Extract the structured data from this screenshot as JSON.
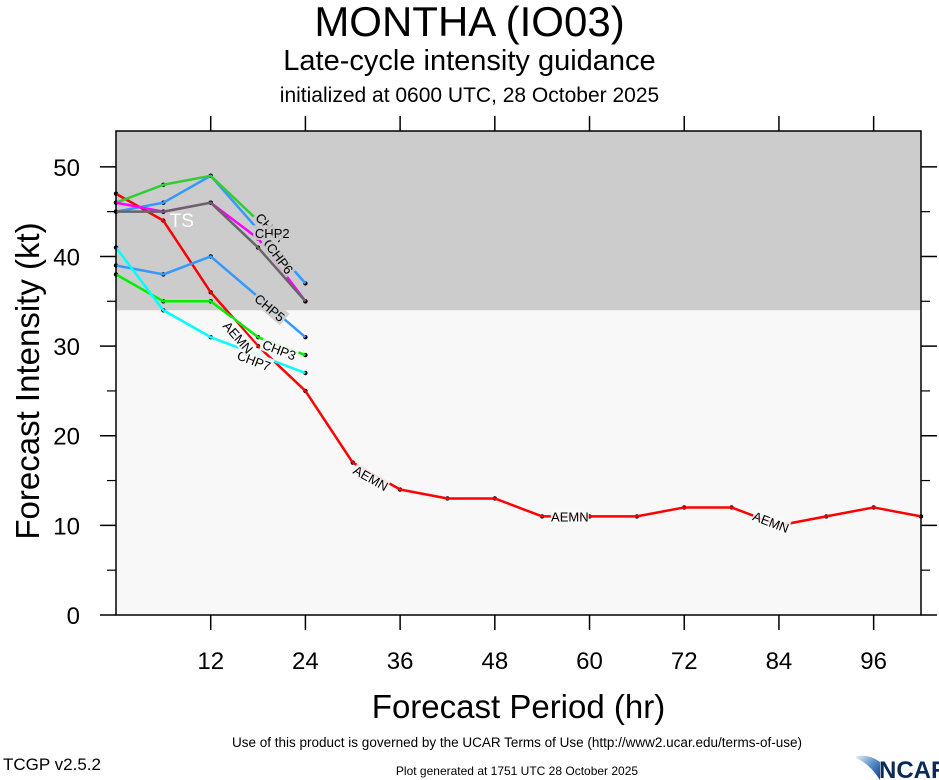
{
  "header": {
    "title": "MONTHA (IO03)",
    "subtitle": "Late-cycle intensity guidance",
    "init_line": "initialized at 0600 UTC, 28 October 2025"
  },
  "footer": {
    "terms": "Use of this product is governed by the UCAR Terms of Use (http://www2.ucar.edu/terms-of-use)",
    "version": "TCGP v2.5.2",
    "generated": "Plot generated at 1751 UTC   28 October 2025",
    "logo_text": "NCAR"
  },
  "chart_data": {
    "type": "line",
    "title": "MONTHA (IO03)",
    "xlabel": "Forecast Period (hr)",
    "ylabel": "Forecast Intensity (kt)",
    "xlim": [
      0,
      102
    ],
    "ylim": [
      0,
      54
    ],
    "xticks": [
      12,
      24,
      36,
      48,
      60,
      72,
      84,
      96
    ],
    "yticks": [
      0,
      10,
      20,
      30,
      40,
      50
    ],
    "yminor_ticks": [
      5,
      15,
      25,
      35,
      45
    ],
    "grid": false,
    "ts_threshold": 34,
    "ts_label": "TS",
    "colors": {
      "ts_band": "#cccccc",
      "plot_bg": "#f8f8f8",
      "AEMN": "#ff0000",
      "blue": "#3399ff",
      "green_upper": "#33cc33",
      "green_lower": "#00ee00",
      "magenta": "#ff00ff",
      "gray": "#666666",
      "cyan": "#00ffff"
    },
    "series": [
      {
        "name": "AEMN",
        "color_key": "AEMN",
        "x": [
          0,
          6,
          12,
          18,
          24,
          30,
          36,
          42,
          48,
          54,
          60,
          66,
          72,
          78,
          84,
          90,
          96,
          102
        ],
        "values": [
          47,
          44,
          36,
          30,
          25,
          17,
          14,
          13,
          13,
          11,
          11,
          11,
          12,
          12,
          10,
          11,
          12,
          11
        ]
      },
      {
        "name": "CHP8",
        "color_key": "blue",
        "x": [
          0,
          6,
          12,
          18,
          24
        ],
        "values": [
          45,
          46,
          49,
          43,
          37
        ]
      },
      {
        "name": "CHP2",
        "color_key": "green_upper",
        "x": [
          0,
          6,
          12,
          18
        ],
        "values": [
          46,
          48,
          49,
          44
        ]
      },
      {
        "name": "CHP6",
        "color_key": "magenta",
        "x": [
          0,
          6,
          12,
          18,
          24
        ],
        "values": [
          46,
          45,
          46,
          42,
          35
        ]
      },
      {
        "name": "CHP4",
        "color_key": "gray",
        "x": [
          0,
          6,
          12,
          18,
          24
        ],
        "values": [
          45,
          45,
          46,
          41,
          35
        ]
      },
      {
        "name": "CHP5",
        "color_key": "blue",
        "x": [
          0,
          6,
          12,
          24
        ],
        "values": [
          39,
          38,
          40,
          31
        ]
      },
      {
        "name": "CHP3",
        "color_key": "green_lower",
        "x": [
          0,
          6,
          12,
          18,
          24
        ],
        "values": [
          38,
          35,
          35,
          31,
          29
        ]
      },
      {
        "name": "CHP7",
        "color_key": "cyan",
        "x": [
          0,
          6,
          12,
          24
        ],
        "values": [
          41,
          34,
          31,
          27
        ]
      }
    ],
    "labels": [
      {
        "text": "CHP8",
        "series": "CHP8",
        "x": 19.5,
        "y": 43.2
      },
      {
        "text": "CHP2",
        "series": "CHP2",
        "x": 19.8,
        "y": 42.6
      },
      {
        "text": "CHP4",
        "series": "CHP4",
        "x": 20.5,
        "y": 40.3
      },
      {
        "text": "CHP6",
        "series": "CHP6",
        "x": 20.8,
        "y": 39.8
      },
      {
        "text": "CHP5",
        "series": "CHP5",
        "x": 19.5,
        "y": 34.3
      },
      {
        "text": "CHP3",
        "series": "CHP3",
        "x": 20.7,
        "y": 29.6
      },
      {
        "text": "CHP7",
        "series": "CHP7",
        "x": 17.5,
        "y": 28.4
      },
      {
        "text": "AEMN",
        "series": "AEMN",
        "x": 15.5,
        "y": 31.0
      },
      {
        "text": "AEMN",
        "series": "AEMN",
        "x": 32.3,
        "y": 15.3
      },
      {
        "text": "AEMN",
        "series": "AEMN",
        "x": 57.5,
        "y": 11.0
      },
      {
        "text": "AEMN",
        "series": "AEMN",
        "x": 83.0,
        "y": 10.4
      }
    ]
  }
}
